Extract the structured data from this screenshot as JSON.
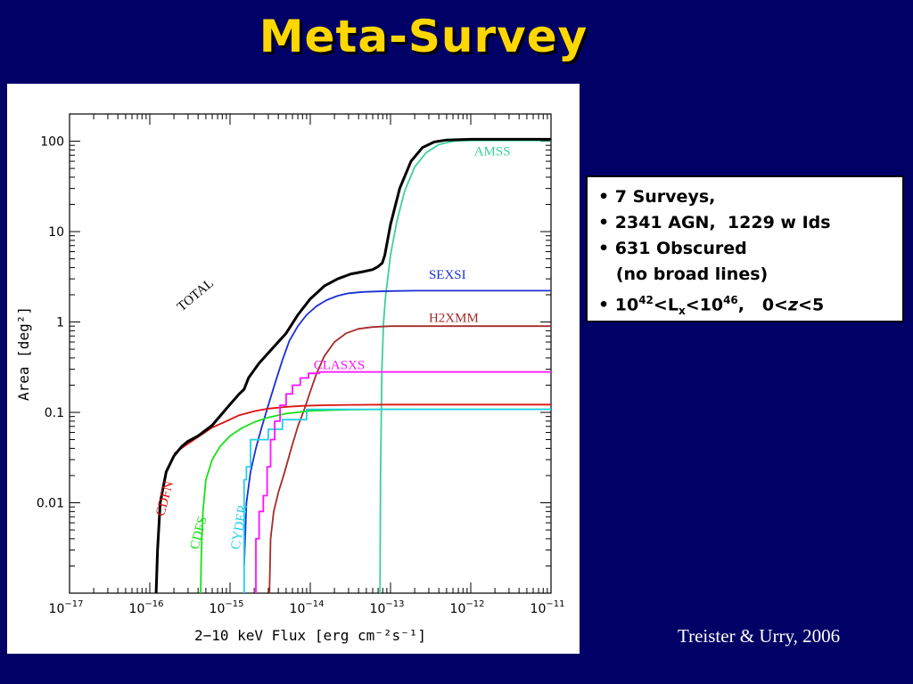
{
  "slide": {
    "title": "Meta-Survey",
    "citation": "Treister & Urry, 2006"
  },
  "info": {
    "line1": "• 7 Surveys,",
    "line2": "• 2341 AGN,  1229 w Ids",
    "line3": "• 631 Obscured",
    "line4": "   (no broad lines)",
    "line5_pre": "• 10",
    "line5_exp1": "42",
    "line5_mid": "<L",
    "line5_sub": "x",
    "line5_mid2": "<10",
    "line5_exp2": "46",
    "line5_post": ",   0<",
    "line5_z": "z",
    "line5_end": "<5"
  },
  "colors": {
    "background": "#000066",
    "title": "#FFD700",
    "TOTAL": "#000000",
    "AMSS": "#3CCFA0",
    "SEXSI": "#1A2FD6",
    "H2XMM": "#A52A2A",
    "CLASXS": "#FF10FF",
    "CDFN": "#DD1010",
    "CDFS": "#18E018",
    "CYDER": "#20D0E8"
  },
  "chart_data": {
    "type": "line",
    "title": "",
    "xlabel": "2−10 keV Flux [erg cm⁻²s⁻¹]",
    "ylabel": "Area [deg²]",
    "xscale": "log",
    "yscale": "log",
    "xlim": [
      1e-17,
      1e-11
    ],
    "ylim": [
      0.001,
      200
    ],
    "x_ticks": [
      1e-17,
      1e-16,
      1e-15,
      1e-14,
      1e-13,
      1e-12,
      1e-11
    ],
    "x_tick_labels": [
      {
        "base": "10",
        "exp": "−17"
      },
      {
        "base": "10",
        "exp": "−16"
      },
      {
        "base": "10",
        "exp": "−15"
      },
      {
        "base": "10",
        "exp": "−14"
      },
      {
        "base": "10",
        "exp": "−13"
      },
      {
        "base": "10",
        "exp": "−12"
      },
      {
        "base": "10",
        "exp": "−11"
      }
    ],
    "y_ticks": [
      0.01,
      0.1,
      1,
      10,
      100
    ],
    "y_tick_labels": [
      "0.01",
      "0.1",
      "1",
      "10",
      "100"
    ],
    "series": [
      {
        "name": "TOTAL",
        "label_x": 2.5e-16,
        "label_y": 1.3,
        "label_rot": -40,
        "x": [
          1.2e-16,
          1.25e-16,
          1.35e-16,
          1.6e-16,
          2e-16,
          2.5e-16,
          3e-16,
          4e-16,
          6e-16,
          9e-16,
          1.3e-15,
          1.5e-15,
          1.7e-15,
          2.3e-15,
          3.3e-15,
          5e-15,
          7e-15,
          1e-14,
          1.5e-14,
          2.2e-14,
          3.2e-14,
          4.5e-14,
          6e-14,
          7e-14,
          7.9e-14,
          8.5e-14,
          1e-13,
          1.3e-13,
          1.8e-13,
          2.5e-13,
          3.5e-13,
          5e-13,
          1e-12,
          1e-11
        ],
        "y": [
          0.001,
          0.003,
          0.01,
          0.022,
          0.033,
          0.042,
          0.048,
          0.055,
          0.072,
          0.11,
          0.16,
          0.18,
          0.24,
          0.35,
          0.5,
          0.75,
          1.2,
          1.8,
          2.5,
          3.0,
          3.4,
          3.6,
          3.8,
          4.1,
          4.5,
          5.5,
          12,
          30,
          60,
          85,
          98,
          103,
          105,
          105
        ]
      },
      {
        "name": "AMSS",
        "label_x": 1.1e-12,
        "label_y": 70,
        "label_rot": 0,
        "x": [
          7.4e-14,
          7.5e-14,
          7.8e-14,
          8.2e-14,
          8.7e-14,
          9.3e-14,
          1e-13,
          1.2e-13,
          1.5e-13,
          2e-13,
          2.8e-13,
          4e-13,
          6e-13,
          1e-12,
          1e-11
        ],
        "y": [
          0.001,
          0.02,
          0.3,
          1.0,
          2.0,
          3.2,
          5.5,
          13,
          28,
          52,
          75,
          92,
          100,
          102,
          102
        ]
      },
      {
        "name": "SEXSI",
        "label_x": 3e-13,
        "label_y": 3.0,
        "label_rot": 0,
        "x": [
          1.5e-15,
          1.6e-15,
          1.8e-15,
          2.1e-15,
          2.5e-15,
          3e-15,
          3.7e-15,
          4.5e-15,
          5.5e-15,
          7e-15,
          9e-15,
          1.2e-14,
          1.6e-14,
          2.2e-14,
          3e-14,
          4.5e-14,
          7e-14,
          1e-13,
          2e-13,
          1e-11
        ],
        "y": [
          0.002,
          0.01,
          0.022,
          0.04,
          0.07,
          0.12,
          0.22,
          0.38,
          0.62,
          0.9,
          1.2,
          1.5,
          1.75,
          1.95,
          2.08,
          2.15,
          2.18,
          2.2,
          2.22,
          2.22
        ]
      },
      {
        "name": "H2XMM",
        "label_x": 3e-13,
        "label_y": 1.0,
        "label_rot": 0,
        "x": [
          3.1e-15,
          3.2e-15,
          3.5e-15,
          4e-15,
          4.8e-15,
          5.8e-15,
          7e-15,
          8.5e-15,
          1e-14,
          1.2e-14,
          1.5e-14,
          2e-14,
          2.8e-14,
          4e-14,
          6e-14,
          1e-13,
          2e-13,
          1e-11
        ],
        "y": [
          0.001,
          0.004,
          0.008,
          0.013,
          0.022,
          0.04,
          0.07,
          0.11,
          0.17,
          0.27,
          0.42,
          0.6,
          0.75,
          0.84,
          0.88,
          0.9,
          0.9,
          0.9
        ]
      },
      {
        "name": "CLASXS",
        "label_x": 1.1e-14,
        "label_y": 0.3,
        "label_rot": 0,
        "step": true,
        "x": [
          2.1e-15,
          2.1e-15,
          2.3e-15,
          2.3e-15,
          2.6e-15,
          2.6e-15,
          2.9e-15,
          2.9e-15,
          3.2e-15,
          3.2e-15,
          3.6e-15,
          3.6e-15,
          4.2e-15,
          4.2e-15,
          5e-15,
          5e-15,
          6e-15,
          6e-15,
          7.5e-15,
          7.5e-15,
          9.5e-15,
          9.5e-15,
          1.3e-14,
          1.3e-14,
          1e-11
        ],
        "y": [
          0.001,
          0.004,
          0.004,
          0.008,
          0.008,
          0.012,
          0.012,
          0.025,
          0.025,
          0.05,
          0.05,
          0.08,
          0.08,
          0.12,
          0.12,
          0.16,
          0.16,
          0.2,
          0.2,
          0.24,
          0.24,
          0.27,
          0.27,
          0.28,
          0.28
        ]
      },
      {
        "name": "CDFN",
        "label_x": 1.5e-16,
        "label_y": 0.007,
        "label_rot": -75,
        "x": [
          2e-16,
          3e-16,
          4.2e-16,
          6e-16,
          9e-16,
          1.3e-15,
          2e-15,
          3e-15,
          5e-15,
          8e-15,
          1.5e-14,
          3e-14,
          1e-13,
          1e-11
        ],
        "y": [
          0.035,
          0.045,
          0.055,
          0.068,
          0.08,
          0.093,
          0.103,
          0.11,
          0.115,
          0.118,
          0.12,
          0.121,
          0.122,
          0.122
        ]
      },
      {
        "name": "CDFS",
        "label_x": 4e-16,
        "label_y": 0.003,
        "label_rot": -75,
        "x": [
          4.3e-16,
          4.4e-16,
          4.6e-16,
          5e-16,
          6e-16,
          7.5e-16,
          1e-15,
          1.4e-15,
          2e-15,
          3e-15,
          5e-15,
          1e-14,
          3e-14,
          1e-13,
          1e-11
        ],
        "y": [
          0.001,
          0.003,
          0.008,
          0.018,
          0.03,
          0.042,
          0.055,
          0.067,
          0.078,
          0.088,
          0.097,
          0.104,
          0.107,
          0.108,
          0.108
        ]
      },
      {
        "name": "CYDER",
        "label_x": 1.3e-15,
        "label_y": 0.003,
        "label_rot": -80,
        "step": true,
        "x": [
          1.5e-15,
          1.5e-15,
          1.6e-15,
          1.6e-15,
          1.8e-15,
          1.8e-15,
          3e-15,
          3e-15,
          4.5e-15,
          4.5e-15,
          9e-15,
          9e-15,
          1e-11
        ],
        "y": [
          0.001,
          0.018,
          0.018,
          0.025,
          0.025,
          0.05,
          0.05,
          0.065,
          0.065,
          0.083,
          0.083,
          0.108,
          0.108
        ]
      }
    ]
  }
}
